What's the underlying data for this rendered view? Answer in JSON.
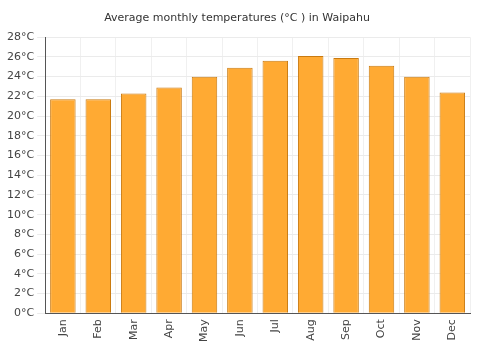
{
  "chart_data": {
    "type": "bar",
    "title": "Average monthly temperatures (°C ) in Waipahu",
    "categories": [
      "Jan",
      "Feb",
      "Mar",
      "Apr",
      "May",
      "Jun",
      "Jul",
      "Aug",
      "Sep",
      "Oct",
      "Nov",
      "Dec"
    ],
    "values": [
      21.7,
      21.7,
      22.3,
      22.9,
      24.0,
      24.9,
      25.6,
      26.1,
      25.9,
      25.1,
      24.0,
      22.4
    ],
    "color": "#ffaa33",
    "ylim": [
      0,
      28
    ],
    "yticks": [
      {
        "value": 0,
        "label": "0°C"
      },
      {
        "value": 2,
        "label": "2°C"
      },
      {
        "value": 4,
        "label": "4°C"
      },
      {
        "value": 6,
        "label": "6°C"
      },
      {
        "value": 8,
        "label": "8°C"
      },
      {
        "value": 10,
        "label": "10°C"
      },
      {
        "value": 12,
        "label": "12°C"
      },
      {
        "value": 14,
        "label": "14°C"
      },
      {
        "value": 16,
        "label": "16°C"
      },
      {
        "value": 18,
        "label": "18°C"
      },
      {
        "value": 20,
        "label": "20°C"
      },
      {
        "value": 22,
        "label": "22°C"
      },
      {
        "value": 24,
        "label": "24°C"
      },
      {
        "value": 26,
        "label": "26°C"
      },
      {
        "value": 28,
        "label": "28°C"
      }
    ],
    "grid": true
  }
}
